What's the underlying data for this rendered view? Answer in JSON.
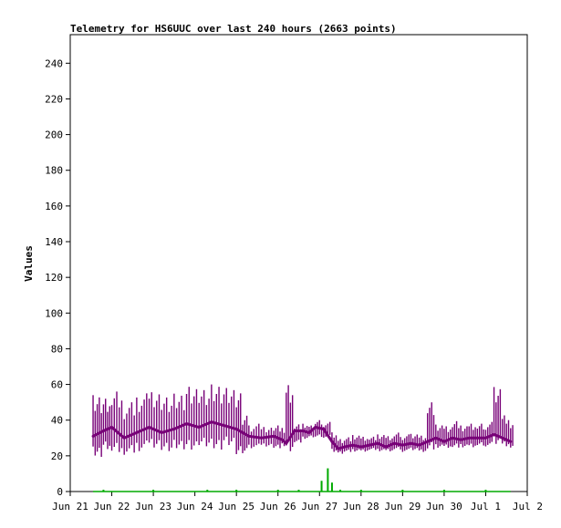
{
  "chart_data": {
    "type": "line",
    "title": "Telemetry for HS6UUC over last 240 hours (2663 points)",
    "ylabel": "Values",
    "xlabel": "",
    "ylim": [
      0,
      256
    ],
    "yticks": [
      0,
      20,
      40,
      60,
      80,
      100,
      120,
      140,
      160,
      180,
      200,
      220,
      240
    ],
    "xticks": [
      "Jun 21",
      "Jun 22",
      "Jun 23",
      "Jun 24",
      "Jun 25",
      "Jun 26",
      "Jun 27",
      "Jun 28",
      "Jun 29",
      "Jun 30",
      "Jul 1",
      "Jul 2"
    ],
    "xlim_days": [
      0,
      11
    ],
    "grid": false,
    "legend": "none",
    "series": [
      {
        "color": "#770077",
        "x_days": [
          0.55,
          0.8,
          1.0,
          1.3,
          1.6,
          1.9,
          2.2,
          2.5,
          2.8,
          3.1,
          3.4,
          3.7,
          4.0,
          4.15,
          4.3,
          4.6,
          4.9,
          5.1,
          5.2,
          5.4,
          5.6,
          5.75,
          5.9,
          6.1,
          6.3,
          6.45,
          6.6,
          6.8,
          7.0,
          7.2,
          7.4,
          7.6,
          7.8,
          8.0,
          8.2,
          8.4,
          8.6,
          8.8,
          9.0,
          9.2,
          9.4,
          9.6,
          9.8,
          10.0,
          10.2,
          10.4,
          10.6
        ],
        "values": [
          31,
          34,
          36,
          30,
          33,
          36,
          33,
          35,
          38,
          36,
          39,
          37,
          35,
          33,
          31,
          30,
          31,
          29,
          27,
          34,
          34,
          33,
          36,
          35,
          28,
          24,
          25,
          26,
          25,
          26,
          27,
          25,
          27,
          26,
          27,
          26,
          28,
          30,
          28,
          30,
          29,
          30,
          30,
          30,
          32,
          30,
          28
        ],
        "range_min": [
          18,
          22,
          20,
          20,
          22,
          24,
          22,
          23,
          22,
          24,
          22,
          24,
          18,
          21,
          24,
          25,
          24,
          25,
          21,
          27,
          29,
          30,
          30,
          30,
          22,
          21,
          22,
          22,
          22,
          23,
          22,
          22,
          23,
          22,
          23,
          22,
          23,
          24,
          24,
          24,
          24,
          24,
          25,
          25,
          26,
          25,
          24
        ],
        "range_max": [
          54,
          52,
          56,
          50,
          55,
          58,
          55,
          56,
          60,
          58,
          60,
          58,
          55,
          45,
          38,
          37,
          38,
          36,
          61,
          38,
          38,
          37,
          40,
          39,
          34,
          30,
          31,
          32,
          31,
          31,
          32,
          31,
          33,
          32,
          33,
          32,
          52,
          38,
          37,
          40,
          37,
          38,
          38,
          39,
          61,
          44,
          40
        ]
      },
      {
        "color": "#00aa00",
        "x_days": [
          0.55,
          0.8,
          1.0,
          1.5,
          2.0,
          2.5,
          3.0,
          3.3,
          3.6,
          4.0,
          4.5,
          5.0,
          5.5,
          5.7,
          5.9,
          6.05,
          6.2,
          6.3,
          6.5,
          6.8,
          7.0,
          7.5,
          8.0,
          8.5,
          9.0,
          9.5,
          10.0,
          10.6
        ],
        "values": [
          0,
          1,
          0,
          0,
          1,
          0,
          0,
          1,
          0,
          1,
          0,
          1,
          1,
          0,
          0,
          6,
          13,
          5,
          1,
          0,
          1,
          0,
          1,
          0,
          1,
          0,
          1,
          0
        ]
      }
    ]
  }
}
